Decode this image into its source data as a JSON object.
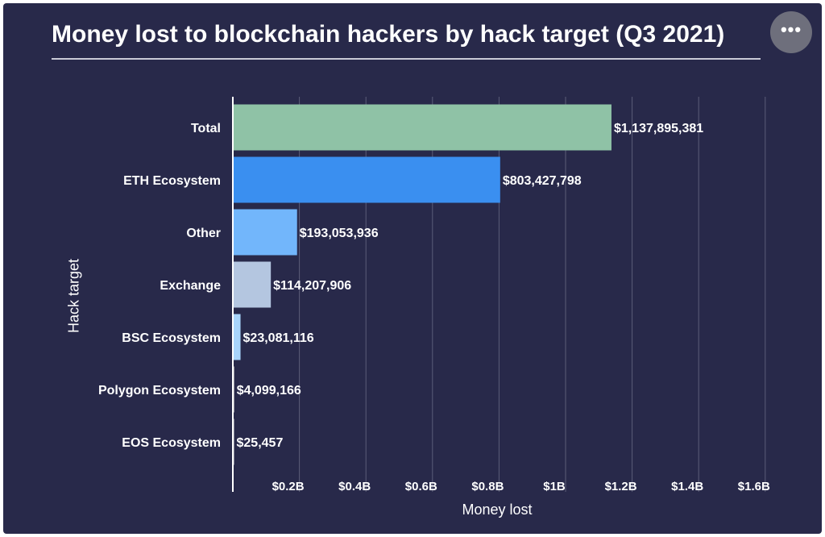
{
  "title": "Money lost to blockchain hackers by hack target (Q3 2021)",
  "more_button_label": "•••",
  "chart_data": {
    "type": "bar",
    "orientation": "horizontal",
    "categories": [
      "Total",
      "ETH Ecosystem",
      "Other",
      "Exchange",
      "BSC Ecosystem",
      "Polygon Ecosystem",
      "EOS Ecosystem"
    ],
    "values": [
      1137895381,
      803427798,
      193053936,
      114207906,
      23081116,
      4099166,
      25457
    ],
    "value_labels": [
      "$1,137,895,381",
      "$803,427,798",
      "$193,053,936",
      "$114,207,906",
      "$23,081,116",
      "$4,099,166",
      "$25,457"
    ],
    "bar_colors": [
      "#8fc2a6",
      "#3a8ff0",
      "#72b6fb",
      "#b4c6e0",
      "#a8d4fb",
      "#c6c6c6",
      "#dddddd"
    ],
    "x_ticks": [
      200000000,
      400000000,
      600000000,
      800000000,
      1000000000,
      1200000000,
      1400000000,
      1600000000
    ],
    "x_tick_labels": [
      "$0.2B",
      "$0.4B",
      "$0.6B",
      "$0.8B",
      "$1B",
      "$1.2B",
      "$1.4B",
      "$1.6B"
    ],
    "xlim": [
      0,
      1600000000
    ],
    "xlabel": "Money lost",
    "ylabel": "Hack target",
    "grid": true,
    "legend": "none"
  },
  "colors": {
    "background": "#28294a",
    "text": "#ffffff",
    "grid": "#5b5d78",
    "axis": "#ffffff"
  }
}
